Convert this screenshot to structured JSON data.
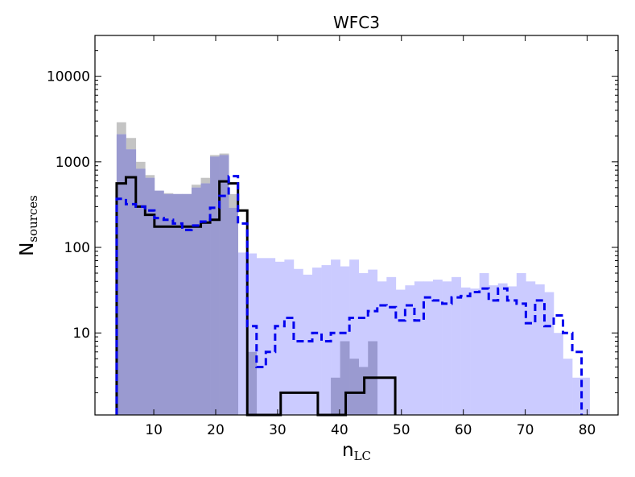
{
  "chart_data": {
    "type": "histogram",
    "title": "WFC3",
    "xlabel_main": "n",
    "xlabel_sub": "LC",
    "ylabel_main": "N",
    "ylabel_sub": "sources",
    "y_scale": "log",
    "xlim": [
      0.5,
      85
    ],
    "ylim": [
      1.1,
      30000
    ],
    "x_ticks": [
      10,
      20,
      30,
      40,
      50,
      60,
      70,
      80
    ],
    "x_tick_labels": [
      "10",
      "20",
      "30",
      "40",
      "50",
      "60",
      "70",
      "80"
    ],
    "y_ticks": [
      10,
      100,
      1000,
      10000
    ],
    "y_tick_labels": [
      "10",
      "100",
      "1000",
      "10000"
    ],
    "grid": false,
    "legend": "none",
    "bin_edges": [
      4,
      5.5,
      7.1,
      8.6,
      10.1,
      11.6,
      13.1,
      14.6,
      16.1,
      17.6,
      19.1,
      20.6,
      22.1,
      23.6,
      25.1,
      26.6,
      28.1,
      29.6,
      31.1,
      32.6,
      34.1,
      35.6,
      37.1,
      38.6,
      40.1,
      41.6,
      43.1,
      44.6,
      46.1,
      47.6,
      49.1,
      50.6,
      52.1,
      53.6,
      55.1,
      56.6,
      58.1,
      59.6,
      61.1,
      62.6,
      64.1,
      65.6,
      67.1,
      68.6,
      70.1,
      71.6,
      73.1,
      74.6,
      76.1,
      77.6,
      79.1,
      80.4
    ],
    "series": [
      {
        "style": "filled",
        "color": "#c4c4c4",
        "values": [
          2900,
          1900,
          1000,
          700,
          460,
          430,
          420,
          420,
          540,
          650,
          1200,
          1250,
          420,
          0,
          0,
          0,
          0,
          0,
          0,
          0,
          0,
          0,
          0,
          0,
          0,
          0,
          0,
          0,
          0,
          0,
          0,
          0,
          0,
          0,
          0,
          0,
          0,
          0,
          0,
          0,
          0,
          0,
          0,
          0,
          0,
          0,
          0,
          0,
          0,
          0,
          0
        ]
      },
      {
        "style": "filled",
        "color": "#cbcbff",
        "values": [
          2100,
          1400,
          830,
          650,
          460,
          420,
          420,
          420,
          500,
          560,
          1150,
          1200,
          290,
          87,
          85,
          75,
          75,
          68,
          72,
          56,
          48,
          58,
          62,
          72,
          60,
          72,
          50,
          55,
          40,
          45,
          32,
          36,
          40,
          40,
          42,
          40,
          45,
          34,
          33,
          50,
          36,
          38,
          35,
          50,
          40,
          37,
          30,
          10,
          5,
          3,
          3
        ]
      },
      {
        "style": "filled",
        "color": "#9a9ad0",
        "values": [
          2100,
          1400,
          830,
          650,
          460,
          420,
          420,
          420,
          500,
          560,
          1150,
          1200,
          290,
          0,
          6,
          0,
          0,
          0,
          0,
          0,
          0,
          0,
          0,
          3,
          8,
          5,
          4,
          8,
          0,
          0,
          0,
          0,
          0,
          0,
          0,
          0,
          0,
          0,
          0,
          0,
          0,
          0,
          0,
          0,
          0,
          0,
          0,
          0,
          0,
          0,
          0
        ]
      },
      {
        "style": "step",
        "color": "#000000",
        "dash": "solid",
        "x": [
          4,
          4,
          5.5,
          5.5,
          7.1,
          7.1,
          8.6,
          8.6,
          10.1,
          10.1,
          11.6,
          11.6,
          17.6,
          17.6,
          19.1,
          19.1,
          20.6,
          20.6,
          22.1,
          22.1,
          23.6,
          23.6,
          25.1,
          25.1,
          26.6,
          26.6,
          30.5,
          30.5,
          36.5,
          36.5,
          41,
          41,
          44,
          44,
          49,
          49
        ],
        "y": [
          1.1,
          560,
          560,
          660,
          660,
          300,
          300,
          240,
          240,
          175,
          175,
          175,
          175,
          195,
          195,
          210,
          210,
          590,
          590,
          560,
          560,
          270,
          270,
          1.1,
          1.1,
          1.1,
          1.1,
          2,
          2,
          1.1,
          1.1,
          2,
          2,
          3,
          3,
          1.1
        ]
      },
      {
        "style": "step",
        "color": "#0000ee",
        "dash": "dashed",
        "x": [
          4,
          4,
          5.5,
          5.5,
          7.1,
          7.1,
          8.6,
          8.6,
          10.1,
          10.1,
          11.6,
          11.6,
          13.1,
          13.1,
          14.6,
          14.6,
          16.1,
          16.1,
          17.6,
          17.6,
          19.1,
          19.1,
          20.6,
          20.6,
          22.1,
          22.1,
          23.6,
          23.6,
          25.1,
          25.1,
          26.6,
          26.6,
          28.1,
          28.1,
          29.6,
          29.6,
          31.1,
          31.1,
          32.6,
          32.6,
          34.1,
          34.1,
          35.6,
          35.6,
          37.1,
          37.1,
          38.6,
          38.6,
          40.1,
          40.1,
          41.6,
          41.6,
          43.1,
          43.1,
          44.6,
          44.6,
          46.1,
          46.1,
          47.6,
          47.6,
          49.1,
          49.1,
          50.6,
          50.6,
          52.1,
          52.1,
          53.6,
          53.6,
          55.1,
          55.1,
          56.6,
          56.6,
          58.1,
          58.1,
          59.6,
          59.6,
          61.1,
          61.1,
          62.6,
          62.6,
          64.1,
          64.1,
          65.6,
          65.6,
          67.1,
          67.1,
          68.6,
          68.6,
          70.1,
          70.1,
          71.6,
          71.6,
          73.1,
          73.1,
          74.6,
          74.6,
          76.1,
          76.1,
          77.6,
          77.6,
          79.1,
          79.1
        ],
        "y": [
          1.1,
          370,
          370,
          320,
          320,
          300,
          300,
          270,
          270,
          220,
          220,
          210,
          210,
          190,
          190,
          160,
          160,
          180,
          180,
          200,
          200,
          290,
          290,
          400,
          400,
          680,
          680,
          190,
          190,
          12,
          12,
          4,
          4,
          6,
          6,
          12,
          12,
          15,
          15,
          8,
          8,
          8,
          8,
          10,
          10,
          8,
          8,
          10,
          10,
          10,
          10,
          15,
          15,
          15,
          15,
          18,
          18,
          21,
          21,
          20,
          20,
          14,
          14,
          21,
          21,
          14,
          14,
          26,
          26,
          24,
          24,
          22,
          22,
          26,
          26,
          27,
          27,
          30,
          30,
          33,
          33,
          24,
          24,
          33,
          33,
          24,
          24,
          22,
          22,
          13,
          13,
          24,
          24,
          12,
          12,
          16,
          16,
          10,
          10,
          6,
          6,
          1.1
        ]
      }
    ]
  }
}
